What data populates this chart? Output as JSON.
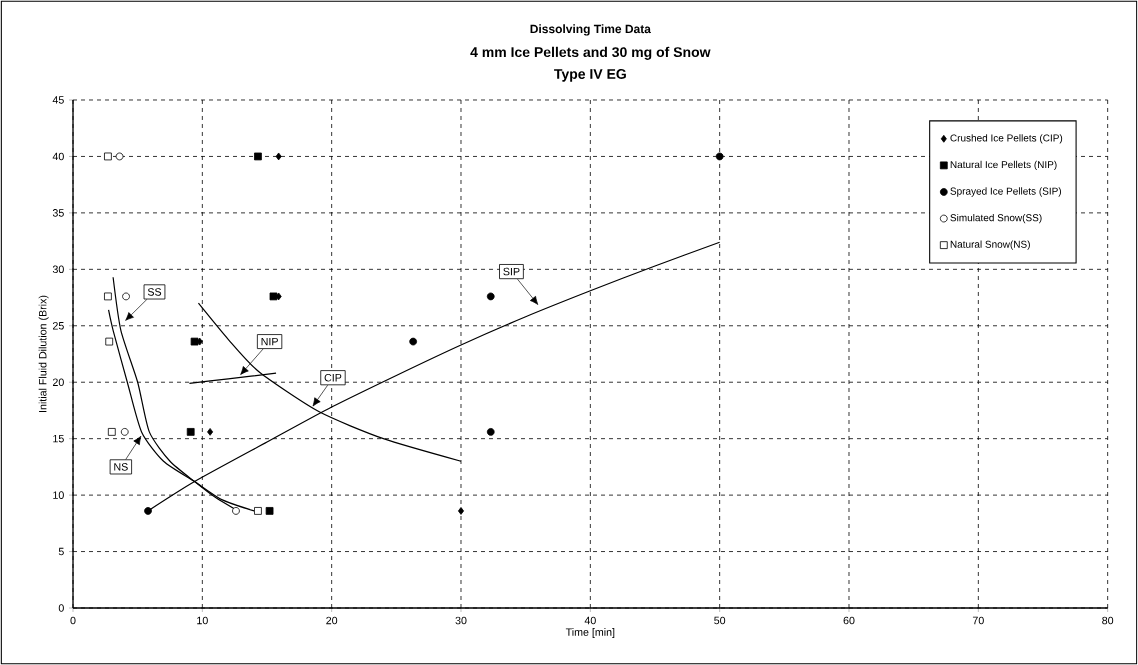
{
  "chart_data": {
    "type": "scatter",
    "title": "Dissolving Time Data",
    "subtitle": [
      "4 mm Ice Pellets and 30 mg of Snow",
      "Type IV EG"
    ],
    "xlabel": "Time [min]",
    "ylabel": "Initial Fluid Dilution (Brix)",
    "xlim": [
      0,
      80
    ],
    "ylim": [
      0,
      45
    ],
    "xticks": [
      0,
      10,
      20,
      30,
      40,
      50,
      60,
      70,
      80
    ],
    "yticks": [
      0,
      5,
      10,
      15,
      20,
      25,
      30,
      35,
      40,
      45
    ],
    "grid": true,
    "legend": "top right",
    "series": [
      {
        "name": "Crushed Ice Pellets (CIP)",
        "color": "#000000",
        "marker": "diamond",
        "x": [
          10.6,
          9.8,
          15.9,
          15.9,
          30.0
        ],
        "values": [
          15.6,
          23.6,
          27.6,
          40,
          8.6
        ]
      },
      {
        "name": "Natural Ice Pellets (NIP)",
        "color": "#000000",
        "marker": "square",
        "x": [
          9.1,
          9.4,
          15.5,
          14.3,
          15.2
        ],
        "values": [
          15.6,
          23.6,
          27.6,
          40,
          8.6
        ]
      },
      {
        "name": "Sprayed Ice Pellets (SIP)",
        "color": "#000000",
        "marker": "circle",
        "x": [
          5.8,
          26.3,
          32.3,
          32.3,
          50.0
        ],
        "values": [
          8.6,
          23.6,
          27.6,
          15.6,
          40
        ]
      },
      {
        "name": "Simulated Snow(SS)",
        "color": "#ffffff",
        "marker": "circle",
        "x": [
          3.6,
          4.1,
          4.0,
          12.6
        ],
        "values": [
          40,
          27.6,
          15.6,
          8.6
        ]
      },
      {
        "name": "Natural Snow(NS)",
        "color": "#ffffff",
        "marker": "square",
        "x": [
          2.7,
          2.7,
          2.8,
          3.0,
          14.3
        ],
        "values": [
          40,
          27.6,
          23.6,
          15.6,
          8.6
        ]
      },
      {
        "type": "line",
        "color": "#000000",
        "marker": "none",
        "x": [
          3.1,
          3.7,
          5.0,
          5.9,
          7.5,
          9.4,
          11.0,
          12.6
        ],
        "values": [
          29.3,
          24.6,
          20,
          15.6,
          13.0,
          11.2,
          9.8,
          8.7
        ]
      },
      {
        "type": "line",
        "color": "#000000",
        "marker": "none",
        "x": [
          2.75,
          3.1,
          4.2,
          5.3,
          7.0,
          9.4,
          11.5,
          14.0
        ],
        "values": [
          26.4,
          24.6,
          20,
          15.6,
          13.0,
          11.2,
          9.6,
          8.6
        ]
      },
      {
        "type": "line",
        "color": "#000000",
        "marker": "none",
        "x": [
          9.0,
          12.0,
          15.7
        ],
        "values": [
          19.9,
          20.3,
          20.8
        ]
      },
      {
        "type": "line",
        "color": "#000000",
        "marker": "none",
        "x": [
          9.7,
          12.0,
          14.4,
          19.0,
          24.0,
          30.0
        ],
        "values": [
          27.0,
          23.8,
          20.9,
          17.4,
          15.0,
          13.0
        ]
      },
      {
        "type": "line",
        "color": "#000000",
        "marker": "none",
        "x": [
          5.8,
          9.4,
          15,
          20,
          25,
          30,
          35,
          40,
          45,
          50
        ],
        "values": [
          8.6,
          11.2,
          14.7,
          17.8,
          20.6,
          23.3,
          25.8,
          28.1,
          30.3,
          32.4
        ]
      }
    ],
    "annotations": [
      {
        "text": "SS",
        "x": 4.0,
        "y": 25.4
      },
      {
        "text": "NS",
        "x": 5.3,
        "y": 15.3
      },
      {
        "text": "NIP",
        "x": 12.9,
        "y": 20.6
      },
      {
        "text": "CIP",
        "x": 18.5,
        "y": 17.8
      },
      {
        "text": "SIP",
        "x": 36.0,
        "y": 26.8
      }
    ]
  }
}
